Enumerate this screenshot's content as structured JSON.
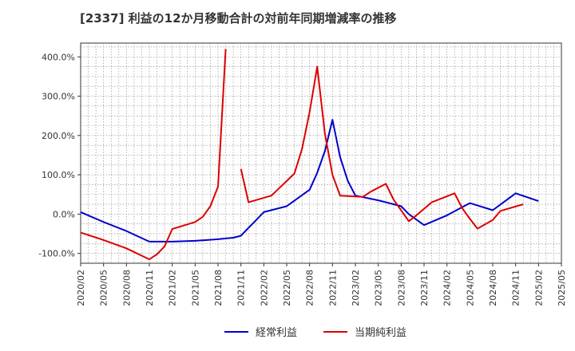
{
  "chart_data": {
    "type": "line",
    "title": "[2337]  利益の12か月移動合計の対前年同期増減率の推移",
    "xlabel": "",
    "ylabel": "",
    "ylim": [
      -125,
      435
    ],
    "yticks": [
      {
        "value": 400,
        "label": "400.0%"
      },
      {
        "value": 300,
        "label": "300.0%"
      },
      {
        "value": 200,
        "label": "200.0%"
      },
      {
        "value": 100,
        "label": "100.0%"
      },
      {
        "value": 0,
        "label": "0.0%"
      },
      {
        "value": -100,
        "label": "-100.0%"
      }
    ],
    "xticks": [
      "2020/02",
      "2020/05",
      "2020/08",
      "2020/11",
      "2021/02",
      "2021/05",
      "2021/08",
      "2021/11",
      "2022/02",
      "2022/05",
      "2022/08",
      "2022/11",
      "2023/02",
      "2023/05",
      "2023/08",
      "2023/11",
      "2024/02",
      "2024/05",
      "2024/08",
      "2024/11",
      "2025/02",
      "2025/05"
    ],
    "x_index_note": "x is months since 2020/02",
    "series": [
      {
        "name": "経常利益",
        "color": "#0000cc",
        "points": [
          [
            0,
            5
          ],
          [
            3,
            -20
          ],
          [
            6,
            -43
          ],
          [
            9,
            -70
          ],
          [
            12,
            -70
          ],
          [
            15,
            -68
          ],
          [
            18,
            -64
          ],
          [
            19,
            -62
          ],
          [
            20,
            -60
          ],
          [
            21,
            -55
          ],
          [
            22,
            -35
          ],
          [
            23,
            -15
          ],
          [
            24,
            5
          ],
          [
            27,
            20
          ],
          [
            30,
            62
          ],
          [
            31,
            105
          ],
          [
            32,
            160
          ],
          [
            33,
            240
          ],
          [
            34,
            145
          ],
          [
            35,
            85
          ],
          [
            36,
            47
          ],
          [
            39,
            35
          ],
          [
            42,
            20
          ],
          [
            43,
            0
          ],
          [
            45,
            -28
          ],
          [
            48,
            -3
          ],
          [
            51,
            28
          ],
          [
            54,
            10
          ],
          [
            57,
            53
          ],
          [
            60,
            33
          ]
        ]
      },
      {
        "name": "当期純利益",
        "color": "#dd0000",
        "points": [
          [
            0,
            -47
          ],
          [
            3,
            -66
          ],
          [
            6,
            -87
          ],
          [
            9,
            -115
          ],
          [
            10,
            -102
          ],
          [
            11,
            -82
          ],
          [
            12,
            -38
          ],
          [
            15,
            -20
          ],
          [
            16,
            -7
          ],
          [
            17,
            20
          ],
          [
            18,
            70
          ],
          [
            19,
            420
          ],
          null,
          [
            21,
            115
          ],
          [
            22,
            30
          ],
          [
            25,
            47
          ],
          [
            28,
            103
          ],
          [
            29,
            165
          ],
          [
            30,
            260
          ],
          [
            31,
            375
          ],
          [
            32,
            205
          ],
          [
            33,
            100
          ],
          [
            34,
            47
          ],
          [
            37,
            44
          ],
          [
            38,
            57
          ],
          [
            40,
            77
          ],
          [
            41,
            37
          ],
          [
            43,
            -18
          ],
          [
            44,
            -3
          ],
          [
            46,
            30
          ],
          [
            49,
            53
          ],
          [
            50,
            15
          ],
          [
            51,
            -12
          ],
          [
            52,
            -37
          ],
          [
            54,
            -15
          ],
          [
            55,
            8
          ],
          [
            58,
            25
          ]
        ]
      }
    ],
    "legend_position": "bottom-center",
    "grid": true
  }
}
